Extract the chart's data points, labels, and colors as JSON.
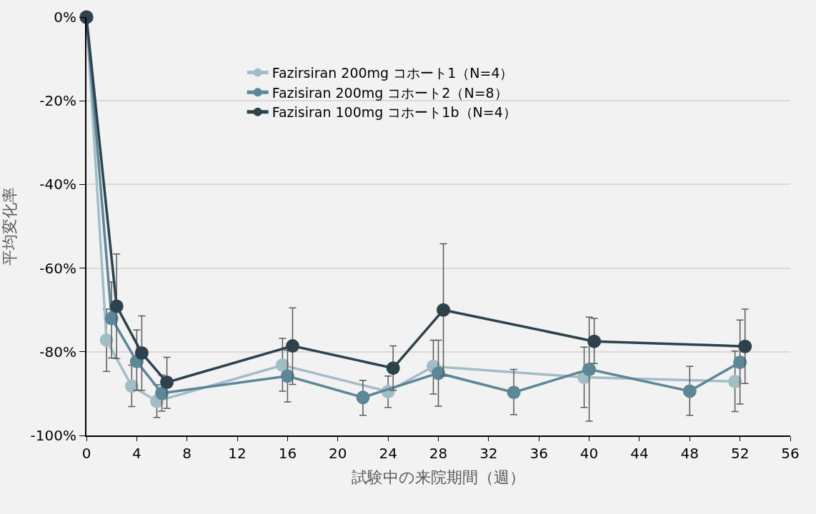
{
  "chart_data": {
    "type": "line",
    "xlabel": "試験中の来院期間（週）",
    "ylabel": "平均変化率",
    "xlim": [
      0,
      56
    ],
    "xticks": [
      0,
      4,
      8,
      12,
      16,
      20,
      24,
      28,
      32,
      36,
      40,
      44,
      48,
      52,
      56
    ],
    "ylim": [
      -100,
      0
    ],
    "yticks": [
      {
        "value": 0,
        "label": "0%"
      },
      {
        "value": -20,
        "label": "-20%"
      },
      {
        "value": -40,
        "label": "-40%"
      },
      {
        "value": -60,
        "label": "-60%"
      },
      {
        "value": -80,
        "label": "-80%"
      },
      {
        "value": -100,
        "label": "-100%"
      }
    ],
    "grid": "y",
    "legend": "top",
    "marker": "circle",
    "line_style": "solid",
    "series": [
      {
        "name": "Fazirsiran 200mg コホート1（N=4）",
        "color": "#a3bdc6",
        "x": [
          0,
          1.6,
          3.6,
          5.6,
          15.6,
          24,
          27.6,
          39.6,
          51.6
        ],
        "values": [
          0,
          -77.2,
          -88.2,
          -91.8,
          -83.2,
          -89.5,
          -83.5,
          -86.1,
          -87.1
        ],
        "errors": [
          null,
          [
            -84.7,
            -69.8
          ],
          [
            -93.1,
            -83.2
          ],
          [
            -95.7,
            -87.9
          ],
          [
            -89.4,
            -76.8
          ],
          [
            -93.3,
            -85.8
          ],
          [
            -90.1,
            -77.2
          ],
          [
            -93.3,
            -78.9
          ],
          [
            -94.3,
            -79.8
          ]
        ]
      },
      {
        "name": "Fazisiran 200mg コホート2（N=8）",
        "color": "#5b8797",
        "x": [
          0,
          2,
          4,
          6,
          16,
          22,
          28,
          34,
          40,
          48,
          52
        ],
        "values": [
          0,
          -72.0,
          -82.3,
          -89.9,
          -85.8,
          -90.9,
          -85.1,
          -89.7,
          -84.2,
          -89.4,
          -82.5
        ],
        "errors": [
          null,
          [
            -81.5,
            -63.3
          ],
          [
            -89.2,
            -74.8
          ],
          [
            -94.2,
            -85.6
          ],
          [
            -92.0,
            -79.6
          ],
          [
            -95.2,
            -86.8
          ],
          [
            -93.0,
            -77.2
          ],
          [
            -95.0,
            -84.2
          ],
          [
            -96.6,
            -71.7
          ],
          [
            -95.2,
            -83.5
          ],
          [
            -92.5,
            -72.4
          ]
        ]
      },
      {
        "name": "Fazisiran 100mg コホート1b（N=4）",
        "color": "#2d424c",
        "x": [
          0,
          2.4,
          4.4,
          6.4,
          16.4,
          24.4,
          28.4,
          40.4,
          52.4
        ],
        "values": [
          0,
          -69.1,
          -80.3,
          -87.3,
          -78.6,
          -83.9,
          -70.0,
          -77.5,
          -78.7
        ],
        "errors": [
          null,
          [
            -81.6,
            -56.6
          ],
          [
            -89.2,
            -71.4
          ],
          [
            -93.5,
            -81.3
          ],
          [
            -87.8,
            -69.5
          ],
          [
            -89.2,
            -78.6
          ],
          [
            -85.8,
            -54.2
          ],
          [
            -82.8,
            -72.0
          ],
          [
            -87.6,
            -69.8
          ]
        ]
      }
    ]
  }
}
